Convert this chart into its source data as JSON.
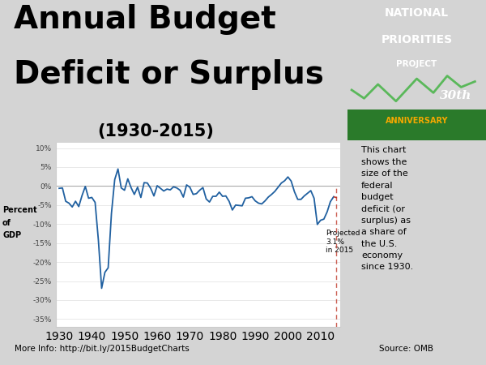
{
  "title_line1": "Annual Budget",
  "title_line2": "Deficit or Surplus",
  "title_line3": "(1930-2015)",
  "bg_color": "#d4d4d4",
  "chart_bg": "#ffffff",
  "bottom_text_left": "More Info: http://bit.ly/2015BudgetCharts",
  "bottom_text_right": "Source: OMB",
  "right_panel_color": "#f5a800",
  "right_panel_text": "This chart\nshows the\nsize of the\nfederal\nbudget\ndeficit (or\nsurplus) as\na share of\nthe U.S.\neconomy\nsince 1930.",
  "npp_bg": "#3a9c3a",
  "npp_line_color": "#5ab85a",
  "ylabel_line1": "Percent",
  "ylabel_line2": "of",
  "ylabel_line3": "GDP",
  "annotation_text": "Projected\n3.1%\nin 2015",
  "line_color": "#2060a0",
  "dashed_color": "#c0392b",
  "years": [
    1930,
    1931,
    1932,
    1933,
    1934,
    1935,
    1936,
    1937,
    1938,
    1939,
    1940,
    1941,
    1942,
    1943,
    1944,
    1945,
    1946,
    1947,
    1948,
    1949,
    1950,
    1951,
    1952,
    1953,
    1954,
    1955,
    1956,
    1957,
    1958,
    1959,
    1960,
    1961,
    1962,
    1963,
    1964,
    1965,
    1966,
    1967,
    1968,
    1969,
    1970,
    1971,
    1972,
    1973,
    1974,
    1975,
    1976,
    1977,
    1978,
    1979,
    1980,
    1981,
    1982,
    1983,
    1984,
    1985,
    1986,
    1987,
    1988,
    1989,
    1990,
    1991,
    1992,
    1993,
    1994,
    1995,
    1996,
    1997,
    1998,
    1999,
    2000,
    2001,
    2002,
    2003,
    2004,
    2005,
    2006,
    2007,
    2008,
    2009,
    2010,
    2011,
    2012,
    2013,
    2014,
    2015
  ],
  "values": [
    -0.6,
    -0.5,
    -4.0,
    -4.5,
    -5.5,
    -4.0,
    -5.4,
    -2.5,
    -0.1,
    -3.2,
    -3.0,
    -4.3,
    -14.2,
    -26.9,
    -22.7,
    -21.5,
    -7.2,
    1.7,
    4.5,
    -0.5,
    -1.1,
    1.9,
    -0.4,
    -2.2,
    -0.3,
    -3.0,
    0.9,
    0.8,
    -0.6,
    -2.6,
    0.1,
    -0.6,
    -1.3,
    -0.8,
    -1.0,
    -0.2,
    -0.5,
    -1.1,
    -2.9,
    0.3,
    -0.3,
    -2.2,
    -2.0,
    -1.1,
    -0.4,
    -3.4,
    -4.2,
    -2.7,
    -2.7,
    -1.6,
    -2.7,
    -2.6,
    -4.0,
    -6.3,
    -5.0,
    -5.1,
    -5.2,
    -3.2,
    -3.1,
    -2.8,
    -3.9,
    -4.5,
    -4.7,
    -3.9,
    -2.9,
    -2.2,
    -1.4,
    -0.3,
    0.8,
    1.4,
    2.4,
    1.3,
    -1.5,
    -3.5,
    -3.5,
    -2.6,
    -1.9,
    -1.2,
    -3.2,
    -10.1,
    -9.0,
    -8.7,
    -6.8,
    -4.1,
    -2.8,
    -3.1
  ]
}
